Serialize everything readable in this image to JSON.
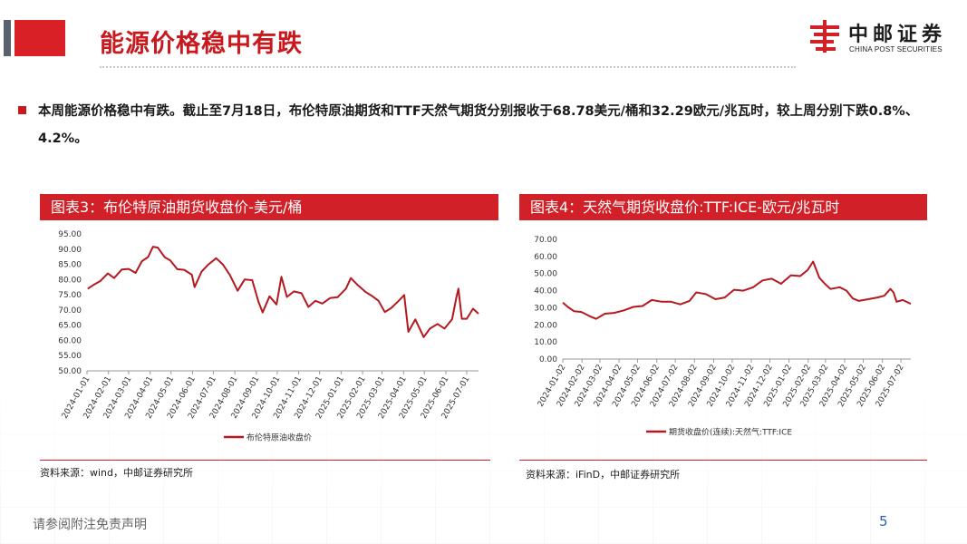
{
  "page": {
    "title": "能源价格稳中有跌",
    "bullet": "本周能源价格稳中有跌。截止至7月18日，布伦特原油期货和TTF天然气期货分别报收于68.78美元/桶和32.29欧元/兆瓦时，较上周分别下跌0.8%、4.2%。",
    "footer_note": "请参阅附注免责声明",
    "page_number": "5"
  },
  "logo": {
    "cn": "中邮证券",
    "en": "CHINA POST SECURITIES"
  },
  "colors": {
    "brand_red": "#d12027",
    "series_line": "#b5191f"
  },
  "panels": [
    {
      "title": "图表3：布伦特原油期货收盘价-美元/桶",
      "source": "资料来源：wind，中邮证券研究所"
    },
    {
      "title": "图表4：天然气期货收盘价:TTF:ICE-欧元/兆瓦时",
      "source": "资料来源：iFinD，中邮证券研究所"
    }
  ],
  "chart_data": [
    {
      "type": "line",
      "title": "图表3：布伦特原油期货收盘价-美元/桶",
      "ylim": [
        50,
        95
      ],
      "y_ticks": [
        "50.00",
        "55.00",
        "60.00",
        "65.00",
        "70.00",
        "75.00",
        "80.00",
        "85.00",
        "90.00",
        "95.00"
      ],
      "x_ticks": [
        "2024-01-01",
        "2024-02-01",
        "2024-03-01",
        "2024-04-01",
        "2024-05-01",
        "2024-06-01",
        "2024-07-01",
        "2024-08-01",
        "2024-09-01",
        "2024-10-01",
        "2024-11-01",
        "2024-12-01",
        "2025-01-01",
        "2025-02-01",
        "2025-03-01",
        "2025-04-01",
        "2025-05-01",
        "2025-06-01",
        "2025-07-01"
      ],
      "legend": "布伦特原油收盘价",
      "legend_position": "bottom",
      "grid": false,
      "series": [
        {
          "name": "布伦特原油收盘价",
          "x": [
            "2024-01-02",
            "2024-01-10",
            "2024-01-20",
            "2024-01-31",
            "2024-02-09",
            "2024-02-20",
            "2024-03-01",
            "2024-03-11",
            "2024-03-20",
            "2024-03-29",
            "2024-04-05",
            "2024-04-12",
            "2024-04-22",
            "2024-04-30",
            "2024-05-10",
            "2024-05-20",
            "2024-05-31",
            "2024-06-04",
            "2024-06-14",
            "2024-06-24",
            "2024-07-05",
            "2024-07-15",
            "2024-07-25",
            "2024-08-05",
            "2024-08-15",
            "2024-08-26",
            "2024-09-04",
            "2024-09-10",
            "2024-09-20",
            "2024-09-30",
            "2024-10-07",
            "2024-10-15",
            "2024-10-25",
            "2024-11-05",
            "2024-11-15",
            "2024-11-25",
            "2024-12-05",
            "2024-12-16",
            "2024-12-27",
            "2025-01-08",
            "2025-01-15",
            "2025-01-24",
            "2025-02-05",
            "2025-02-14",
            "2025-02-24",
            "2025-03-05",
            "2025-03-14",
            "2025-03-25",
            "2025-04-02",
            "2025-04-08",
            "2025-04-18",
            "2025-04-30",
            "2025-05-09",
            "2025-05-20",
            "2025-05-30",
            "2025-06-10",
            "2025-06-16",
            "2025-06-19",
            "2025-06-24",
            "2025-07-01",
            "2025-07-10",
            "2025-07-18"
          ],
          "values": [
            77.0,
            78.2,
            79.5,
            82.0,
            80.5,
            83.3,
            83.5,
            82.2,
            86.0,
            87.4,
            90.8,
            90.5,
            87.3,
            86.3,
            83.4,
            83.2,
            81.6,
            77.5,
            82.6,
            85.0,
            87.0,
            84.9,
            81.4,
            76.3,
            80.0,
            79.8,
            72.7,
            69.2,
            74.5,
            71.8,
            80.9,
            74.3,
            76.1,
            75.5,
            71.0,
            73.0,
            72.1,
            73.9,
            74.2,
            77.0,
            80.5,
            78.4,
            76.0,
            74.7,
            73.0,
            69.3,
            70.6,
            73.0,
            74.9,
            62.8,
            66.9,
            61.1,
            63.9,
            65.4,
            63.9,
            67.0,
            74.0,
            77.0,
            67.1,
            67.1,
            70.4,
            68.78
          ]
        }
      ]
    },
    {
      "type": "line",
      "title": "图表4：天然气期货收盘价:TTF:ICE-欧元/兆瓦时",
      "ylim": [
        0,
        70
      ],
      "y_ticks": [
        "0.00",
        "10.00",
        "20.00",
        "30.00",
        "40.00",
        "50.00",
        "60.00",
        "70.00"
      ],
      "x_ticks": [
        "2024-01-02",
        "2024-02-02",
        "2024-03-02",
        "2024-04-02",
        "2024-05-02",
        "2024-06-02",
        "2024-07-02",
        "2024-08-02",
        "2024-09-02",
        "2024-10-02",
        "2024-11-02",
        "2024-12-02",
        "2025-01-02",
        "2025-02-02",
        "2025-03-02",
        "2025-04-02",
        "2025-05-02",
        "2025-06-02",
        "2025-07-02"
      ],
      "legend": "期货收盘价(连续):天然气:TTF:ICE",
      "legend_position": "bottom",
      "grid": false,
      "series": [
        {
          "name": "期货收盘价(连续):天然气:TTF:ICE",
          "x": [
            "2024-01-02",
            "2024-01-10",
            "2024-01-20",
            "2024-02-01",
            "2024-02-15",
            "2024-02-25",
            "2024-03-10",
            "2024-03-25",
            "2024-04-10",
            "2024-04-25",
            "2024-05-10",
            "2024-05-25",
            "2024-06-10",
            "2024-06-25",
            "2024-07-10",
            "2024-07-25",
            "2024-08-05",
            "2024-08-20",
            "2024-09-05",
            "2024-09-20",
            "2024-10-05",
            "2024-10-20",
            "2024-11-05",
            "2024-11-20",
            "2024-12-05",
            "2024-12-20",
            "2025-01-05",
            "2025-01-20",
            "2025-02-01",
            "2025-02-10",
            "2025-02-20",
            "2025-03-01",
            "2025-03-10",
            "2025-03-25",
            "2025-04-05",
            "2025-04-15",
            "2025-04-25",
            "2025-05-10",
            "2025-05-25",
            "2025-06-05",
            "2025-06-15",
            "2025-06-20",
            "2025-06-25",
            "2025-07-05",
            "2025-07-18"
          ],
          "values": [
            33.0,
            30.5,
            28.0,
            27.5,
            25.0,
            23.5,
            26.5,
            27.0,
            28.5,
            30.5,
            31.0,
            34.5,
            33.5,
            33.5,
            32.0,
            34.0,
            39.0,
            38.0,
            35.0,
            36.0,
            40.5,
            40.0,
            42.0,
            46.0,
            47.0,
            44.0,
            49.0,
            48.5,
            52.0,
            57.0,
            47.5,
            44.0,
            41.0,
            42.0,
            40.0,
            35.5,
            34.0,
            35.0,
            36.0,
            37.0,
            41.0,
            39.0,
            33.5,
            34.5,
            32.29
          ]
        }
      ]
    }
  ]
}
